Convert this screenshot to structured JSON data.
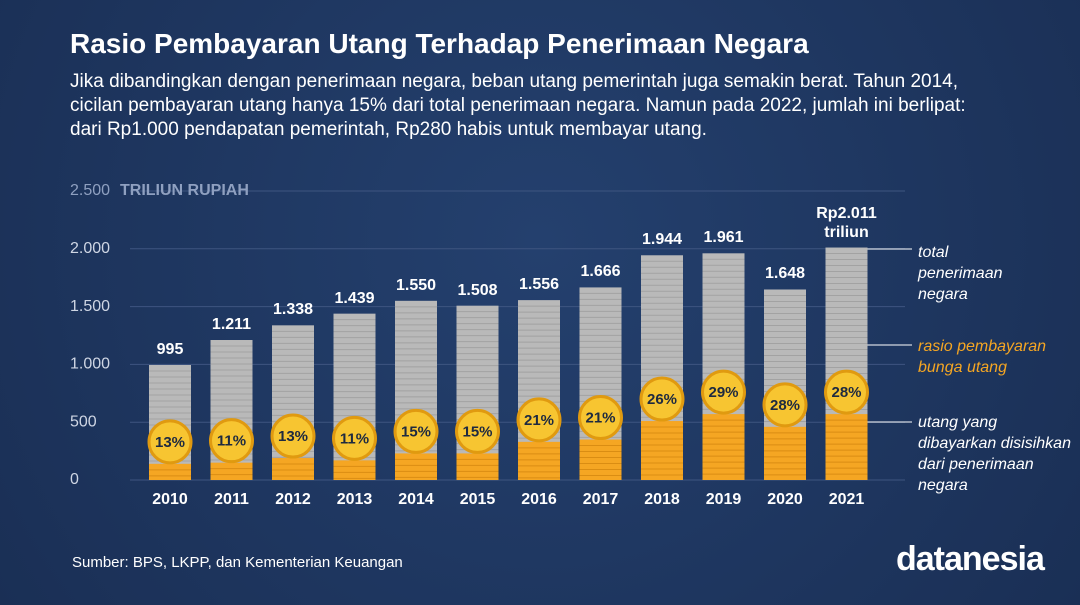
{
  "chart_data": {
    "type": "bar",
    "title": "Rasio Pembayaran Utang Terhadap Penerimaan Negara",
    "subtitle": "Jika dibandingkan dengan penerimaan negara, beban utang pemerintah juga semakin berat. Tahun 2014, cicilan pembayaran utang hanya 15% dari total penerimaan negara. Namun pada 2022, jumlah ini berlipat: dari Rp1.000 pendapatan pemerintah, Rp280 habis untuk membayar utang.",
    "y_label": "TRILIUN RUPIAH",
    "categories": [
      "2010",
      "2011",
      "2012",
      "2013",
      "2014",
      "2015",
      "2016",
      "2017",
      "2018",
      "2019",
      "2020",
      "2021"
    ],
    "series": [
      {
        "name": "total penerimaan negara",
        "color": "#b9b9b9",
        "values": [
          995,
          1211,
          1338,
          1439,
          1550,
          1508,
          1556,
          1666,
          1944,
          1961,
          1648,
          2011
        ],
        "value_labels": [
          "995",
          "1.211",
          "1.338",
          "1.439",
          "1.550",
          "1.508",
          "1.556",
          "1.666",
          "1.944",
          "1.961",
          "1.648",
          "Rp2.011 triliun"
        ]
      },
      {
        "name": "utang yang dibayarkan disisihkan dari penerimaan negara",
        "color": "#f5a623",
        "values": [
          140,
          150,
          190,
          170,
          230,
          230,
          330,
          350,
          510,
          570,
          460,
          570
        ]
      },
      {
        "name": "rasio pembayaran bunga utang",
        "color": "#f7c531",
        "values": [
          13,
          11,
          13,
          11,
          15,
          15,
          21,
          21,
          26,
          29,
          28,
          28
        ],
        "value_labels": [
          "13%",
          "11%",
          "13%",
          "11%",
          "15%",
          "15%",
          "21%",
          "21%",
          "26%",
          "29%",
          "28%",
          "28%"
        ]
      }
    ],
    "ylim": [
      0,
      2500
    ],
    "yticks": [
      0,
      500,
      {
        "value": 1000,
        "label": "1.000"
      },
      {
        "value": 1500,
        "label": "1.500"
      },
      {
        "value": 2000,
        "label": "2.000"
      },
      {
        "value": 2500,
        "label": "2.500"
      }
    ],
    "grid": true,
    "source": "Sumber:  BPS, LKPP, dan Kementerian Keuangan",
    "brand": "datanesia"
  }
}
